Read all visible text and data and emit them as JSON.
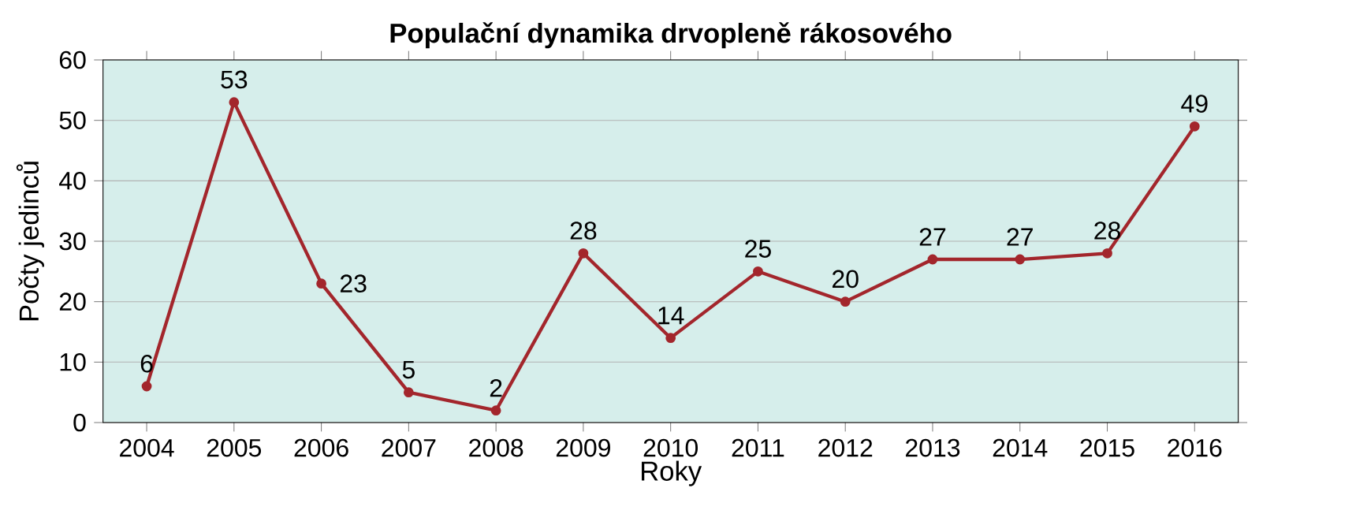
{
  "chart_data": {
    "type": "line",
    "title": "Populační dynamika drvopleně rákosového",
    "xlabel": "Roky",
    "ylabel": "Počty jedinců",
    "categories": [
      "2004",
      "2005",
      "2006",
      "2007",
      "2008",
      "2009",
      "2010",
      "2011",
      "2012",
      "2013",
      "2014",
      "2015",
      "2016"
    ],
    "values": [
      6,
      53,
      23,
      5,
      2,
      28,
      14,
      25,
      20,
      27,
      27,
      28,
      49
    ],
    "color": "#a3262c",
    "ylim": [
      0,
      60
    ],
    "yticks": [
      0,
      10,
      20,
      30,
      40,
      50,
      60
    ],
    "grid": "y",
    "marker": "circle",
    "line_style": "solid",
    "data_labels": true
  }
}
